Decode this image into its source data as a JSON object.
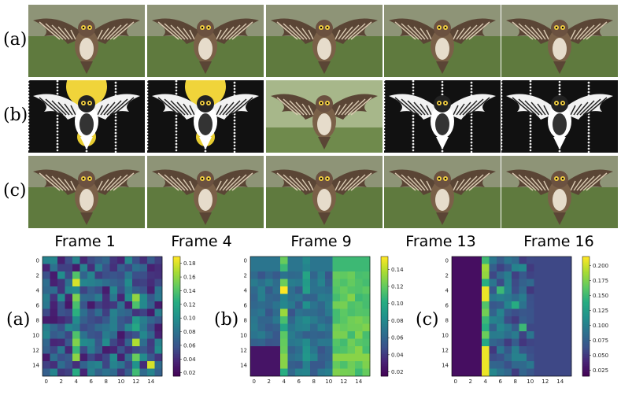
{
  "row_labels": [
    "(a)",
    "(b)",
    "(c)"
  ],
  "frame_labels": [
    "Frame 1",
    "Frame 4",
    "Frame 9",
    "Frame 13",
    "Frame 16"
  ],
  "heatmap_labels": [
    "(a)",
    "(b)",
    "(c)"
  ],
  "chart_data": [
    {
      "type": "heatmap",
      "size": 16,
      "colorbar_ticks": [
        "0.18",
        "0.16",
        "0.14",
        "0.12",
        "0.10",
        "0.08",
        "0.06",
        "0.04",
        "0.02"
      ],
      "colorbar_range": [
        0.015,
        0.19
      ],
      "x_ticks": [
        "0",
        "2",
        "4",
        "6",
        "8",
        "10",
        "12",
        "14"
      ],
      "y_ticks": [
        "0",
        "2",
        "4",
        "6",
        "8",
        "10",
        "12",
        "14"
      ]
    },
    {
      "type": "heatmap",
      "size": 16,
      "colorbar_ticks": [
        "0.14",
        "0.12",
        "0.10",
        "0.08",
        "0.06",
        "0.04",
        "0.02"
      ],
      "colorbar_range": [
        0.015,
        0.155
      ],
      "x_ticks": [
        "0",
        "2",
        "4",
        "6",
        "8",
        "10",
        "12",
        "14"
      ],
      "y_ticks": [
        "0",
        "2",
        "4",
        "6",
        "8",
        "10",
        "12",
        "14"
      ]
    },
    {
      "type": "heatmap",
      "size": 16,
      "colorbar_ticks": [
        "0.200",
        "0.175",
        "0.150",
        "0.125",
        "0.100",
        "0.075",
        "0.050",
        "0.025"
      ],
      "colorbar_range": [
        0.015,
        0.215
      ],
      "x_ticks": [
        "0",
        "2",
        "4",
        "6",
        "8",
        "10",
        "12",
        "14"
      ],
      "y_ticks": [
        "0",
        "2",
        "4",
        "6",
        "8",
        "10",
        "12",
        "14"
      ]
    }
  ]
}
